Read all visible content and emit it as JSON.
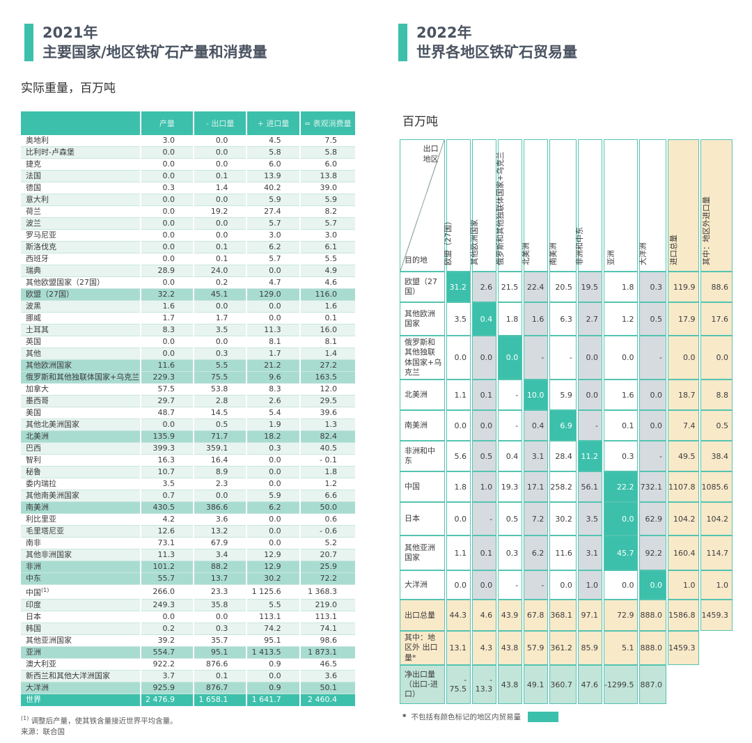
{
  "colors": {
    "teal": "#3cc0ac",
    "highlight_row": "#a9dcd1",
    "stripe_row": "#e7f4f0",
    "gray_column": "#d6dbe0",
    "orange_column": "#f8e9c9",
    "net_row": "#c2e4d9",
    "title_text": "#4a5361"
  },
  "left_panel": {
    "title_year": "2021年",
    "title_line": "主要国家/地区铁矿石产量和消费量",
    "subtitle": "实际重量，百万吨",
    "table": {
      "headers": [
        "",
        "产量",
        "- 出口量",
        "+ 进口量",
        "= 表观消费量"
      ],
      "rows": [
        {
          "label": "奥地利",
          "values": [
            "3.0",
            "0.0",
            "4.5",
            "7.5"
          ],
          "kind": "w"
        },
        {
          "label": "比利时-卢森堡",
          "values": [
            "0.0",
            "0.0",
            "5.8",
            "5.8"
          ],
          "kind": "p"
        },
        {
          "label": "捷克",
          "values": [
            "0.0",
            "0.0",
            "6.0",
            "6.0"
          ],
          "kind": "w"
        },
        {
          "label": "法国",
          "values": [
            "0.0",
            "0.1",
            "13.9",
            "13.8"
          ],
          "kind": "p"
        },
        {
          "label": "德国",
          "values": [
            "0.3",
            "1.4",
            "40.2",
            "39.0"
          ],
          "kind": "w"
        },
        {
          "label": "意大利",
          "values": [
            "0.0",
            "0.0",
            "5.9",
            "5.9"
          ],
          "kind": "p"
        },
        {
          "label": "荷兰",
          "values": [
            "0.0",
            "19.2",
            "27.4",
            "8.2"
          ],
          "kind": "w"
        },
        {
          "label": "波兰",
          "values": [
            "0.0",
            "0.0",
            "5.7",
            "5.7"
          ],
          "kind": "p"
        },
        {
          "label": "罗马尼亚",
          "values": [
            "0.0",
            "0.0",
            "3.0",
            "3.0"
          ],
          "kind": "w"
        },
        {
          "label": "斯洛伐克",
          "values": [
            "0.0",
            "0.1",
            "6.2",
            "6.1"
          ],
          "kind": "p"
        },
        {
          "label": "西班牙",
          "values": [
            "0.0",
            "0.1",
            "5.7",
            "5.5"
          ],
          "kind": "w"
        },
        {
          "label": "瑞典",
          "values": [
            "28.9",
            "24.0",
            "0.0",
            "4.9"
          ],
          "kind": "p"
        },
        {
          "label": "其他欧盟国家（27国）",
          "values": [
            "0.0",
            "0.2",
            "4.7",
            "4.6"
          ],
          "kind": "w"
        },
        {
          "label": "欧盟（27国）",
          "values": [
            "32.2",
            "45.1",
            "129.0",
            "116.0"
          ],
          "kind": "h"
        },
        {
          "label": "波黑",
          "values": [
            "1.6",
            "0.0",
            "0.0",
            "1.6"
          ],
          "kind": "p"
        },
        {
          "label": "挪威",
          "values": [
            "1.7",
            "1.7",
            "0.0",
            "0.1"
          ],
          "kind": "w"
        },
        {
          "label": "土耳其",
          "values": [
            "8.3",
            "3.5",
            "11.3",
            "16.0"
          ],
          "kind": "p"
        },
        {
          "label": "英国",
          "values": [
            "0.0",
            "0.0",
            "8.1",
            "8.1"
          ],
          "kind": "w"
        },
        {
          "label": "其他",
          "values": [
            "0.0",
            "0.3",
            "1.7",
            "1.4"
          ],
          "kind": "p"
        },
        {
          "label": "其他欧洲国家",
          "values": [
            "11.6",
            "5.5",
            "21.2",
            "27.2"
          ],
          "kind": "h"
        },
        {
          "label": "俄罗斯和其他独联体国家+乌克兰",
          "values": [
            "229.3",
            "75.5",
            "9.6",
            "163.5"
          ],
          "kind": "h"
        },
        {
          "label": "加拿大",
          "values": [
            "57.5",
            "53.8",
            "8.3",
            "12.0"
          ],
          "kind": "w"
        },
        {
          "label": "墨西哥",
          "values": [
            "29.7",
            "2.8",
            "2.6",
            "29.5"
          ],
          "kind": "p"
        },
        {
          "label": "美国",
          "values": [
            "48.7",
            "14.5",
            "5.4",
            "39.6"
          ],
          "kind": "w"
        },
        {
          "label": "其他北美洲国家",
          "values": [
            "0.0",
            "0.5",
            "1.9",
            "1.3"
          ],
          "kind": "p"
        },
        {
          "label": "北美洲",
          "values": [
            "135.9",
            "71.7",
            "18.2",
            "82.4"
          ],
          "kind": "h"
        },
        {
          "label": "巴西",
          "values": [
            "399.3",
            "359.1",
            "0.3",
            "40.5"
          ],
          "kind": "p"
        },
        {
          "label": "智利",
          "values": [
            "16.3",
            "16.4",
            "0.0",
            "- 0.1"
          ],
          "kind": "w"
        },
        {
          "label": "秘鲁",
          "values": [
            "10.7",
            "8.9",
            "0.0",
            "1.8"
          ],
          "kind": "p"
        },
        {
          "label": "委内瑞拉",
          "values": [
            "3.5",
            "2.3",
            "0.0",
            "1.2"
          ],
          "kind": "w"
        },
        {
          "label": "其他南美洲国家",
          "values": [
            "0.7",
            "0.0",
            "5.9",
            "6.6"
          ],
          "kind": "p"
        },
        {
          "label": "南美洲",
          "values": [
            "430.5",
            "386.6",
            "6.2",
            "50.0"
          ],
          "kind": "h"
        },
        {
          "label": "利比里亚",
          "values": [
            "4.2",
            "3.6",
            "0.0",
            "0.6"
          ],
          "kind": "w"
        },
        {
          "label": "毛里塔尼亚",
          "values": [
            "12.6",
            "13.2",
            "0.0",
            "- 0.6"
          ],
          "kind": "p"
        },
        {
          "label": "南非",
          "values": [
            "73.1",
            "67.9",
            "0.0",
            "5.2"
          ],
          "kind": "w"
        },
        {
          "label": "其他非洲国家",
          "values": [
            "11.3",
            "3.4",
            "12.9",
            "20.7"
          ],
          "kind": "p"
        },
        {
          "label": "非洲",
          "values": [
            "101.2",
            "88.2",
            "12.9",
            "25.9"
          ],
          "kind": "h"
        },
        {
          "label": "中东",
          "values": [
            "55.7",
            "13.7",
            "30.2",
            "72.2"
          ],
          "kind": "h"
        },
        {
          "label": "中国",
          "sup": "(1)",
          "values": [
            "266.0",
            "23.3",
            "1 125.6",
            "1 368.3"
          ],
          "kind": "w"
        },
        {
          "label": "印度",
          "values": [
            "249.3",
            "35.8",
            "5.5",
            "219.0"
          ],
          "kind": "p"
        },
        {
          "label": "日本",
          "values": [
            "0.0",
            "0.0",
            "113.1",
            "113.1"
          ],
          "kind": "w"
        },
        {
          "label": "韩国",
          "values": [
            "0.2",
            "0.3",
            "74.2",
            "74.1"
          ],
          "kind": "p"
        },
        {
          "label": "其他亚洲国家",
          "values": [
            "39.2",
            "35.7",
            "95.1",
            "98.6"
          ],
          "kind": "w"
        },
        {
          "label": "亚洲",
          "values": [
            "554.7",
            "95.1",
            "1 413.5",
            "1 873.1"
          ],
          "kind": "h"
        },
        {
          "label": "澳大利亚",
          "values": [
            "922.2",
            "876.6",
            "0.9",
            "46.5"
          ],
          "kind": "w"
        },
        {
          "label": "新西兰和其他大洋洲国家",
          "values": [
            "3.7",
            "0.1",
            "0.0",
            "3.6"
          ],
          "kind": "p"
        },
        {
          "label": "大洋洲",
          "values": [
            "925.9",
            "876.7",
            "0.9",
            "50.1"
          ],
          "kind": "h"
        },
        {
          "label": "世界",
          "values": [
            "2 476.9",
            "1 658.1",
            "1 641.7",
            "2 460.4"
          ],
          "kind": "t"
        }
      ]
    },
    "footnote_marker": "(1)",
    "footnote_text": "调整后产量，使其铁含量接近世界平均含量。",
    "source": "来源：联合国"
  },
  "right_panel": {
    "title_year": "2022年",
    "title_line": "世界各地区铁矿石贸易量",
    "subtitle": "百万吨",
    "matrix": {
      "corner_top": "出口地区",
      "corner_bottom": "目的地",
      "col_headers": [
        "欧盟（27国）",
        "其他欧洲国家",
        "俄罗斯和其他独联体国家+乌克兰",
        "北美洲",
        "南美洲",
        "非洲和中东",
        "亚洲",
        "大洋洲",
        "进口总量",
        "其中：地区外进口量"
      ],
      "rows": [
        {
          "label": "欧盟（27国）",
          "cells": [
            "31.2",
            "2.6",
            "21.5",
            "22.4",
            "20.5",
            "19.5",
            "1.8",
            "0.3",
            "119.9",
            "88.6"
          ],
          "diag": 0
        },
        {
          "label": "其他欧洲 国家",
          "cells": [
            "3.5",
            "0.4",
            "1.8",
            "1.6",
            "6.3",
            "2.7",
            "1.2",
            "0.5",
            "17.9",
            "17.6"
          ],
          "diag": 1
        },
        {
          "label": "俄罗斯和其他独联体国家+乌克兰",
          "cells": [
            "0.0",
            "0.0",
            "0.0",
            "-",
            "-",
            "0.0",
            "0.0",
            "-",
            "0.0",
            "0.0"
          ],
          "diag": 2
        },
        {
          "label": "北美洲",
          "cells": [
            "1.1",
            "0.1",
            "-",
            "10.0",
            "5.9",
            "0.0",
            "1.6",
            "0.0",
            "18.7",
            "8.8"
          ],
          "diag": 3
        },
        {
          "label": "南美洲",
          "cells": [
            "0.0",
            "0.0",
            "-",
            "0.4",
            "6.9",
            "-",
            "0.1",
            "0.0",
            "7.4",
            "0.5"
          ],
          "diag": 4
        },
        {
          "label": "非洲和中东",
          "cells": [
            "5.6",
            "0.5",
            "0.4",
            "3.1",
            "28.4",
            "11.2",
            "0.3",
            "-",
            "49.5",
            "38.4"
          ],
          "diag": 5
        },
        {
          "label": "中国",
          "cells": [
            "1.8",
            "1.0",
            "19.3",
            "17.1",
            "258.2",
            "56.1",
            "22.2",
            "732.1",
            "1107.8",
            "1085.6"
          ],
          "diag": 6
        },
        {
          "label": "日本",
          "cells": [
            "0.0",
            "-",
            "0.5",
            "7.2",
            "30.2",
            "3.5",
            "0.0",
            "62.9",
            "104.2",
            "104.2"
          ],
          "diag": 6
        },
        {
          "label": "其他亚洲 国家",
          "cells": [
            "1.1",
            "0.1",
            "0.3",
            "6.2",
            "11.6",
            "3.1",
            "45.7",
            "92.2",
            "160.4",
            "114.7"
          ],
          "diag": 6
        },
        {
          "label": "大洋洲",
          "cells": [
            "0.0",
            "0.0",
            "-",
            "-",
            "0.0",
            "1.0",
            "0.0",
            "0.0",
            "1.0",
            "1.0"
          ],
          "diag": 7
        }
      ],
      "summary_rows": [
        {
          "label": "出口总量",
          "cells": [
            "44.3",
            "4.6",
            "43.9",
            "67.8",
            "368.1",
            "97.1",
            "72.9",
            "888.0",
            "1586.8",
            "1459.3"
          ],
          "type": "export"
        },
        {
          "label": "其中：地区外 出口量*",
          "cells": [
            "13.1",
            "4.3",
            "43.8",
            "57.9",
            "361.2",
            "85.9",
            "5.1",
            "888.0",
            "1459.3"
          ],
          "type": "extra"
        },
        {
          "label": "净出口量 （出口-进口）",
          "cells": [
            "- 75.5",
            "- 13.3",
            "43.8",
            "49.1",
            "360.7",
            "47.6",
            "-1299.5",
            "887.0"
          ],
          "type": "net"
        }
      ]
    },
    "legend_star": "*",
    "legend_text": "不包括有颜色标记的地区内贸易量"
  }
}
